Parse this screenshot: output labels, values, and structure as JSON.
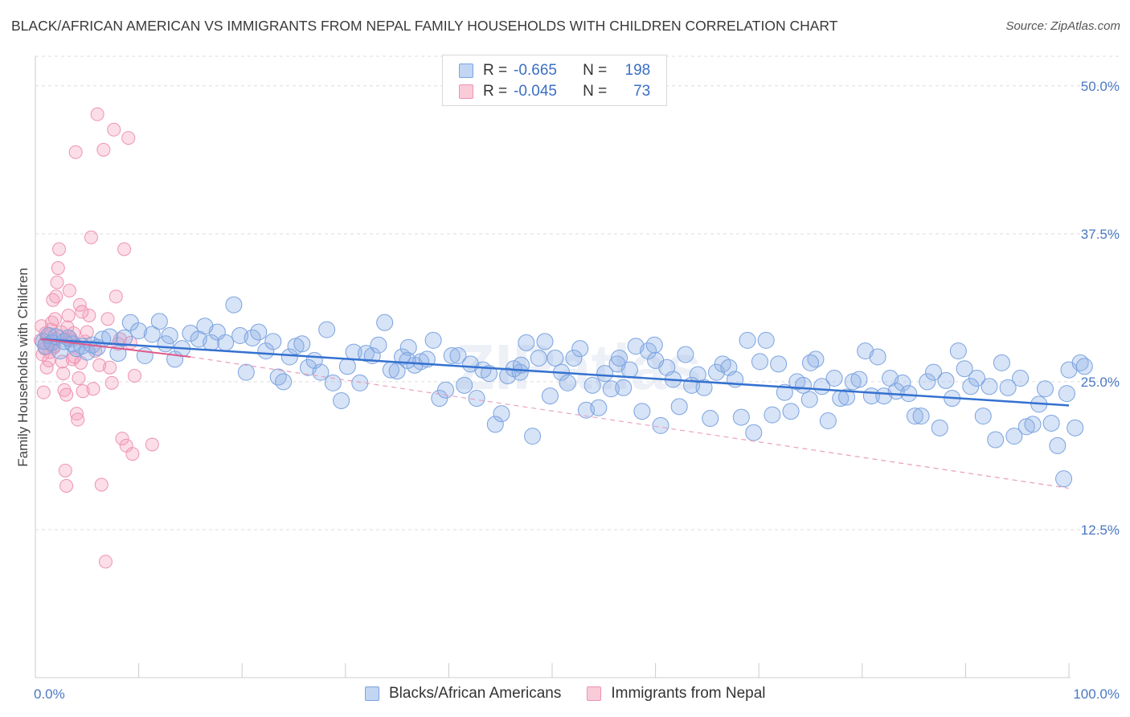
{
  "title": "BLACK/AFRICAN AMERICAN VS IMMIGRANTS FROM NEPAL FAMILY HOUSEHOLDS WITH CHILDREN CORRELATION CHART",
  "source": "Source: ZipAtlas.com",
  "watermark": "ZIPatlas",
  "legend": {
    "rows": [
      {
        "r_label": "R =",
        "r_value": "-0.665",
        "n_label": "N =",
        "n_value": "198"
      },
      {
        "r_label": "R =",
        "r_value": "-0.045",
        "n_label": "N =",
        "n_value": "73"
      }
    ]
  },
  "chart_data": {
    "type": "scatter",
    "title": "BLACK/AFRICAN AMERICAN VS IMMIGRANTS FROM NEPAL FAMILY HOUSEHOLDS WITH CHILDREN CORRELATION CHART",
    "xlabel": "",
    "ylabel": "Family Households with Children",
    "xlim": [
      0,
      100
    ],
    "ylim": [
      0,
      52.5
    ],
    "x_tick_labels": [
      "0.0%",
      "100.0%"
    ],
    "y_ticks": [
      12.5,
      25.0,
      37.5,
      50.0
    ],
    "y_tick_labels": [
      "12.5%",
      "25.0%",
      "37.5%",
      "50.0%"
    ],
    "grid": true,
    "legend_position": "bottom",
    "colors": {
      "blue": "#6f9de0",
      "blue_line": "#3471d0",
      "pink": "#f08cab",
      "pink_line": "#e05a8a"
    },
    "series": [
      {
        "name": "Blacks/African Americans",
        "color": "#6f9de0",
        "trend": {
          "x0": 0.5,
          "y0": 28.6,
          "x1": 100,
          "y1": 23.0
        },
        "points": [
          [
            0.8,
            28.4
          ],
          [
            1.0,
            28.0
          ],
          [
            1.3,
            28.9
          ],
          [
            1.6,
            28.3
          ],
          [
            2.0,
            28.8
          ],
          [
            2.4,
            27.6
          ],
          [
            2.8,
            28.4
          ],
          [
            3.2,
            28.7
          ],
          [
            3.6,
            28.2
          ],
          [
            4.0,
            27.8
          ],
          [
            4.5,
            28.0
          ],
          [
            5.0,
            27.5
          ],
          [
            5.5,
            28.1
          ],
          [
            6.0,
            27.9
          ],
          [
            6.5,
            28.6
          ],
          [
            7.2,
            28.8
          ],
          [
            8.0,
            27.4
          ],
          [
            8.6,
            28.7
          ],
          [
            9.2,
            30.0
          ],
          [
            10.0,
            29.3
          ],
          [
            10.6,
            27.2
          ],
          [
            11.3,
            29.0
          ],
          [
            12.0,
            30.1
          ],
          [
            12.6,
            28.2
          ],
          [
            13.0,
            28.9
          ],
          [
            13.5,
            26.9
          ],
          [
            14.2,
            27.8
          ],
          [
            15.0,
            29.1
          ],
          [
            15.8,
            28.6
          ],
          [
            16.4,
            29.7
          ],
          [
            17.0,
            28.3
          ],
          [
            17.6,
            29.2
          ],
          [
            18.4,
            28.3
          ],
          [
            19.2,
            31.5
          ],
          [
            19.8,
            28.9
          ],
          [
            20.4,
            25.8
          ],
          [
            21.0,
            28.7
          ],
          [
            21.6,
            29.2
          ],
          [
            22.3,
            27.6
          ],
          [
            23.0,
            28.4
          ],
          [
            23.5,
            25.4
          ],
          [
            24.0,
            25.0
          ],
          [
            24.6,
            27.1
          ],
          [
            25.2,
            28.0
          ],
          [
            25.8,
            28.2
          ],
          [
            26.4,
            26.2
          ],
          [
            27.0,
            26.8
          ],
          [
            27.6,
            25.8
          ],
          [
            28.2,
            29.4
          ],
          [
            28.8,
            24.9
          ],
          [
            29.6,
            23.4
          ],
          [
            30.2,
            26.3
          ],
          [
            30.8,
            27.5
          ],
          [
            31.4,
            24.9
          ],
          [
            32.0,
            27.4
          ],
          [
            32.6,
            27.2
          ],
          [
            33.2,
            28.1
          ],
          [
            33.8,
            30.0
          ],
          [
            34.4,
            26.0
          ],
          [
            35.0,
            25.9
          ],
          [
            35.5,
            27.1
          ],
          [
            36.1,
            27.9
          ],
          [
            36.7,
            26.4
          ],
          [
            37.3,
            26.7
          ],
          [
            37.9,
            26.9
          ],
          [
            38.5,
            28.5
          ],
          [
            39.1,
            23.6
          ],
          [
            39.7,
            24.3
          ],
          [
            40.3,
            27.2
          ],
          [
            40.9,
            27.2
          ],
          [
            41.5,
            24.7
          ],
          [
            42.1,
            26.5
          ],
          [
            42.7,
            23.6
          ],
          [
            43.3,
            26.0
          ],
          [
            43.9,
            25.7
          ],
          [
            44.5,
            21.4
          ],
          [
            45.1,
            22.3
          ],
          [
            45.7,
            25.5
          ],
          [
            46.3,
            26.1
          ],
          [
            46.9,
            25.8
          ],
          [
            47.5,
            28.3
          ],
          [
            48.1,
            20.4
          ],
          [
            48.7,
            27.0
          ],
          [
            49.3,
            28.4
          ],
          [
            49.8,
            23.8
          ],
          [
            50.3,
            27.0
          ],
          [
            50.9,
            25.8
          ],
          [
            51.5,
            24.9
          ],
          [
            52.1,
            27.0
          ],
          [
            52.7,
            27.8
          ],
          [
            53.3,
            22.6
          ],
          [
            53.9,
            24.7
          ],
          [
            54.5,
            22.8
          ],
          [
            55.1,
            25.7
          ],
          [
            55.7,
            24.4
          ],
          [
            56.3,
            26.5
          ],
          [
            56.9,
            24.5
          ],
          [
            57.5,
            26.0
          ],
          [
            58.1,
            28.0
          ],
          [
            58.7,
            22.5
          ],
          [
            59.3,
            27.6
          ],
          [
            59.9,
            28.1
          ],
          [
            60.5,
            21.3
          ],
          [
            61.1,
            26.2
          ],
          [
            61.7,
            25.2
          ],
          [
            62.3,
            22.9
          ],
          [
            62.9,
            27.3
          ],
          [
            63.5,
            24.7
          ],
          [
            64.1,
            25.6
          ],
          [
            64.7,
            24.5
          ],
          [
            65.3,
            21.9
          ],
          [
            65.9,
            25.8
          ],
          [
            66.5,
            26.5
          ],
          [
            67.1,
            26.2
          ],
          [
            67.7,
            25.2
          ],
          [
            68.3,
            22.0
          ],
          [
            68.9,
            28.5
          ],
          [
            69.5,
            20.7
          ],
          [
            70.1,
            26.7
          ],
          [
            70.7,
            28.5
          ],
          [
            71.3,
            22.2
          ],
          [
            71.9,
            26.5
          ],
          [
            72.5,
            24.1
          ],
          [
            73.1,
            22.5
          ],
          [
            73.7,
            25.0
          ],
          [
            74.3,
            24.7
          ],
          [
            74.9,
            23.5
          ],
          [
            75.5,
            26.9
          ],
          [
            76.1,
            24.6
          ],
          [
            76.7,
            21.7
          ],
          [
            77.3,
            25.3
          ],
          [
            77.9,
            23.6
          ],
          [
            78.5,
            23.7
          ],
          [
            79.1,
            25.0
          ],
          [
            79.7,
            25.2
          ],
          [
            80.3,
            27.6
          ],
          [
            80.9,
            23.8
          ],
          [
            81.5,
            27.1
          ],
          [
            82.1,
            23.8
          ],
          [
            82.7,
            25.3
          ],
          [
            83.3,
            24.2
          ],
          [
            83.9,
            24.9
          ],
          [
            84.5,
            24.0
          ],
          [
            85.1,
            22.1
          ],
          [
            85.7,
            22.1
          ],
          [
            86.3,
            25.0
          ],
          [
            86.9,
            25.8
          ],
          [
            87.5,
            21.1
          ],
          [
            88.1,
            25.1
          ],
          [
            88.7,
            23.6
          ],
          [
            89.3,
            27.6
          ],
          [
            89.9,
            26.1
          ],
          [
            90.5,
            24.6
          ],
          [
            91.1,
            25.3
          ],
          [
            91.7,
            22.1
          ],
          [
            92.3,
            24.6
          ],
          [
            92.9,
            20.1
          ],
          [
            93.5,
            26.6
          ],
          [
            94.1,
            24.5
          ],
          [
            94.7,
            20.4
          ],
          [
            95.3,
            25.3
          ],
          [
            95.9,
            21.2
          ],
          [
            96.5,
            21.4
          ],
          [
            97.1,
            23.1
          ],
          [
            97.7,
            24.4
          ],
          [
            98.3,
            21.5
          ],
          [
            98.9,
            19.6
          ],
          [
            99.5,
            16.8
          ],
          [
            99.8,
            24.0
          ],
          [
            100.0,
            26.0
          ],
          [
            100.6,
            21.1
          ],
          [
            101.1,
            26.6
          ],
          [
            101.5,
            26.3
          ],
          [
            56.5,
            27.0
          ],
          [
            36.0,
            26.8
          ],
          [
            47.0,
            26.4
          ],
          [
            60.0,
            26.8
          ],
          [
            75.0,
            26.6
          ]
        ]
      },
      {
        "name": "Immigrants from Nepal",
        "color": "#f08cab",
        "trend": {
          "x0": 0.5,
          "y0": 28.6,
          "x1": 15.0,
          "y1": 27.1
        },
        "trend_dashed": {
          "x0": 15.0,
          "y0": 27.1,
          "x1": 100,
          "y1": 16.0
        },
        "points": [
          [
            0.5,
            28.5
          ],
          [
            0.6,
            29.7
          ],
          [
            0.7,
            27.3
          ],
          [
            0.8,
            24.1
          ],
          [
            0.9,
            28.3
          ],
          [
            1.0,
            29.1
          ],
          [
            1.1,
            26.2
          ],
          [
            1.2,
            28.8
          ],
          [
            1.3,
            26.8
          ],
          [
            1.4,
            27.5
          ],
          [
            1.5,
            29.4
          ],
          [
            1.6,
            30.0
          ],
          [
            1.7,
            31.9
          ],
          [
            1.8,
            28.0
          ],
          [
            1.9,
            30.3
          ],
          [
            2.0,
            32.2
          ],
          [
            2.1,
            33.4
          ],
          [
            2.2,
            34.6
          ],
          [
            2.3,
            36.2
          ],
          [
            2.4,
            28.8
          ],
          [
            2.5,
            29.2
          ],
          [
            2.6,
            26.7
          ],
          [
            2.7,
            25.7
          ],
          [
            2.8,
            24.3
          ],
          [
            2.9,
            17.5
          ],
          [
            3.0,
            16.2
          ],
          [
            3.1,
            29.6
          ],
          [
            3.2,
            30.6
          ],
          [
            3.3,
            32.7
          ],
          [
            3.4,
            28.7
          ],
          [
            3.5,
            28.5
          ],
          [
            3.6,
            26.9
          ],
          [
            3.7,
            29.1
          ],
          [
            3.8,
            27.1
          ],
          [
            3.9,
            44.4
          ],
          [
            4.0,
            22.3
          ],
          [
            4.1,
            21.8
          ],
          [
            4.2,
            25.3
          ],
          [
            4.3,
            31.5
          ],
          [
            4.4,
            26.6
          ],
          [
            4.6,
            24.2
          ],
          [
            4.8,
            28.4
          ],
          [
            5.0,
            29.2
          ],
          [
            5.2,
            30.6
          ],
          [
            5.4,
            37.2
          ],
          [
            5.6,
            24.4
          ],
          [
            5.8,
            27.6
          ],
          [
            6.0,
            47.6
          ],
          [
            6.2,
            26.4
          ],
          [
            6.4,
            16.3
          ],
          [
            6.6,
            44.6
          ],
          [
            6.8,
            9.8
          ],
          [
            7.0,
            30.3
          ],
          [
            7.2,
            26.2
          ],
          [
            7.4,
            24.9
          ],
          [
            7.6,
            46.3
          ],
          [
            7.8,
            32.2
          ],
          [
            8.0,
            28.2
          ],
          [
            8.2,
            28.6
          ],
          [
            8.4,
            20.2
          ],
          [
            8.6,
            36.2
          ],
          [
            8.8,
            19.6
          ],
          [
            9.0,
            45.6
          ],
          [
            9.2,
            28.3
          ],
          [
            9.4,
            18.9
          ],
          [
            9.6,
            25.5
          ],
          [
            11.3,
            19.7
          ],
          [
            1.5,
            28.2
          ],
          [
            0.9,
            27.8
          ],
          [
            2.0,
            28.6
          ],
          [
            3.0,
            23.9
          ],
          [
            1.8,
            27.9
          ],
          [
            4.5,
            30.9
          ]
        ]
      }
    ]
  },
  "bottom_legend": [
    "Blacks/African Americans",
    "Immigrants from Nepal"
  ]
}
